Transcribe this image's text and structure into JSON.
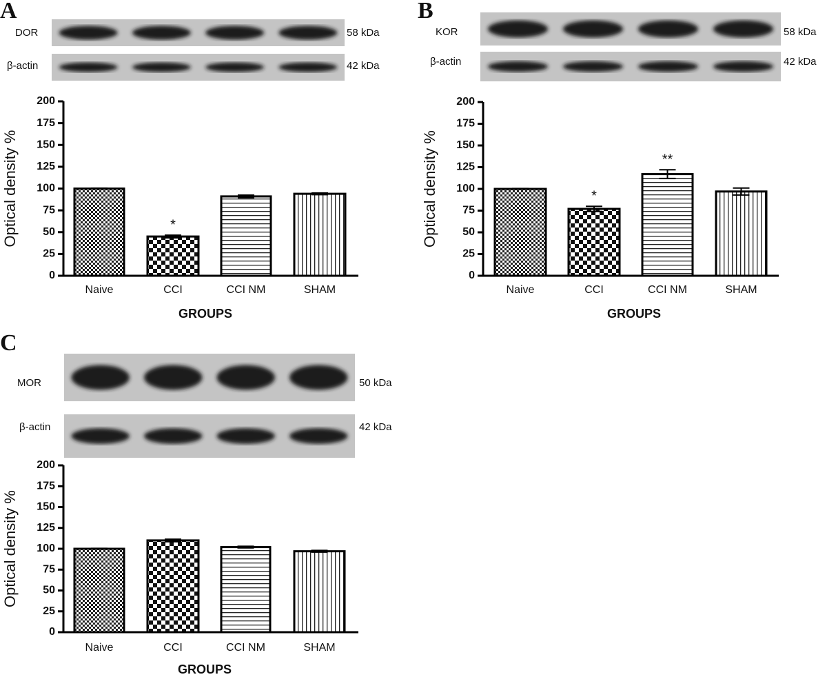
{
  "chart_data": [
    {
      "type": "bar",
      "panel": "A",
      "blots": [
        {
          "label": "DOR",
          "size": "58 kDa"
        },
        {
          "label": "β-actin",
          "size": "42 kDa"
        }
      ],
      "categories": [
        "Naive",
        "CCI",
        "CCI NM",
        "SHAM"
      ],
      "values": [
        100,
        45,
        91,
        94
      ],
      "errors": [
        0.5,
        1.5,
        1.5,
        1
      ],
      "value_annotations": [
        null,
        "*",
        null,
        null
      ],
      "patterns": [
        "checker-fine",
        "checker-large",
        "horizontal",
        "vertical"
      ],
      "xlabel": "GROUPS",
      "ylabel": "Optical density %",
      "ylim": [
        0,
        200
      ],
      "yticks": [
        0,
        25,
        50,
        75,
        100,
        125,
        150,
        175,
        200
      ]
    },
    {
      "type": "bar",
      "panel": "B",
      "blots": [
        {
          "label": "KOR",
          "size": "58 kDa"
        },
        {
          "label": "β-actin",
          "size": "42 kDa"
        }
      ],
      "categories": [
        "Naive",
        "CCI",
        "CCI NM",
        "SHAM"
      ],
      "values": [
        100,
        77,
        117,
        97
      ],
      "errors": [
        0.5,
        3,
        5,
        4
      ],
      "value_annotations": [
        null,
        "*",
        "**",
        null
      ],
      "patterns": [
        "checker-fine",
        "checker-large",
        "horizontal",
        "vertical"
      ],
      "xlabel": "GROUPS",
      "ylabel": "Optical density %",
      "ylim": [
        0,
        200
      ],
      "yticks": [
        0,
        25,
        50,
        75,
        100,
        125,
        150,
        175,
        200
      ]
    },
    {
      "type": "bar",
      "panel": "C",
      "blots": [
        {
          "label": "MOR",
          "size": "50 kDa"
        },
        {
          "label": "β-actin",
          "size": "42 kDa"
        }
      ],
      "categories": [
        "Naive",
        "CCI",
        "CCI NM",
        "SHAM"
      ],
      "values": [
        100,
        110,
        102,
        97
      ],
      "errors": [
        0.5,
        1.5,
        1,
        1
      ],
      "value_annotations": [
        null,
        null,
        null,
        null
      ],
      "patterns": [
        "checker-fine",
        "checker-large",
        "horizontal",
        "vertical"
      ],
      "xlabel": "GROUPS",
      "ylabel": "Optical density %",
      "ylim": [
        0,
        200
      ],
      "yticks": [
        0,
        25,
        50,
        75,
        100,
        125,
        150,
        175,
        200
      ]
    }
  ]
}
